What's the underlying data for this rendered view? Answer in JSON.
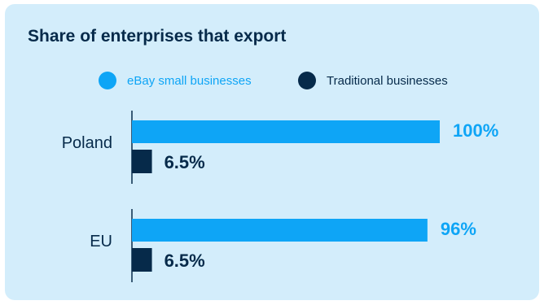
{
  "title": "Share of enterprises that export",
  "colors": {
    "card_bg": "#d3edfb",
    "ebay": "#0ea5f6",
    "traditional": "#062a4a",
    "text": "#062a4a",
    "axis": "#062a4a"
  },
  "legend": [
    {
      "label": "eBay small businesses",
      "color": "#0ea5f6",
      "text_color": "#0ea5f6"
    },
    {
      "label": "Traditional businesses",
      "color": "#062a4a",
      "text_color": "#062a4a"
    }
  ],
  "chart_data": {
    "type": "bar",
    "orientation": "horizontal",
    "title": "Share of enterprises that export",
    "categories": [
      "Poland",
      "EU"
    ],
    "series": [
      {
        "name": "eBay small businesses",
        "values": [
          100,
          96
        ],
        "labels": [
          "100%",
          "96%"
        ],
        "color": "#0ea5f6"
      },
      {
        "name": "Traditional businesses",
        "values": [
          6.5,
          6.5
        ],
        "labels": [
          "6.5%",
          "6.5%"
        ],
        "color": "#062a4a"
      }
    ],
    "xlim": [
      0,
      100
    ],
    "grid": false,
    "legend_position": "top"
  }
}
